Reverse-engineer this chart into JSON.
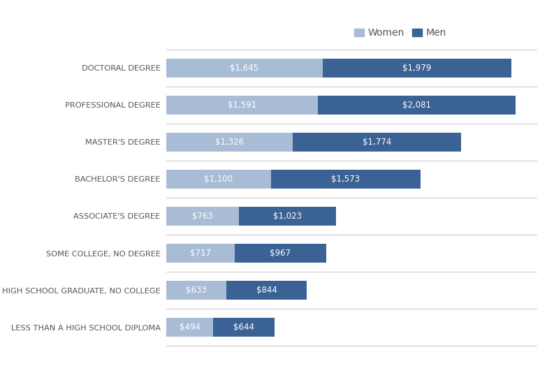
{
  "categories": [
    "LESS THAN A HIGH SCHOOL DIPLOMA",
    "HIGH SCHOOL GRADUATE, NO COLLEGE",
    "SOME COLLEGE, NO DEGREE",
    "ASSOCIATE'S DEGREE",
    "BACHELOR'S DEGREE",
    "MASTER'S DEGREE",
    "PROFESSIONAL DEGREE",
    "DOCTORAL DEGREE"
  ],
  "women_values": [
    494,
    633,
    717,
    763,
    1100,
    1326,
    1591,
    1645
  ],
  "men_values": [
    644,
    844,
    967,
    1023,
    1573,
    1774,
    2081,
    1979
  ],
  "women_color": "#a8bcd6",
  "men_color": "#3b6294",
  "background_color": "#ffffff",
  "text_color": "#555555",
  "label_fontsize": 8.5,
  "bar_height": 0.52,
  "xlim": [
    0,
    3900
  ],
  "legend_labels": [
    "Women",
    "Men"
  ],
  "grid_color": "#cccccc"
}
